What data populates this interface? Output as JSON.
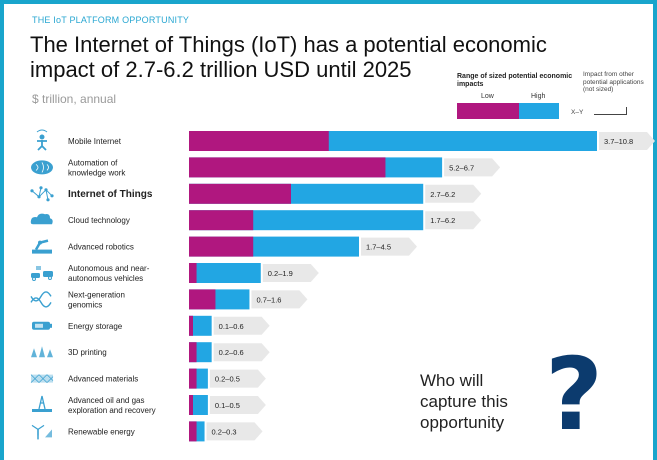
{
  "header": {
    "kicker": "THE IoT PLATFORM OPPORTUNITY",
    "title_line1": "The Internet of Things (IoT) has a potential economic",
    "title_line2": "impact of 2.7-6.2 trillion USD until 2025",
    "unit": "$ trillion, annual"
  },
  "legend": {
    "range_title": "Range of sized potential economic impacts",
    "low": "Low",
    "high": "High",
    "other_title": "Impact from other potential applications (not sized)",
    "xy": "X–Y"
  },
  "callout": {
    "line1": "Who will",
    "line2": "capture this",
    "line3": "opportunity",
    "mark": "?"
  },
  "colors": {
    "low": "#b0177f",
    "high": "#22a6e3",
    "label_box": "#e8e8e8",
    "accent": "#19a5cc",
    "icon": "#3aa0d0"
  },
  "chart_data": {
    "type": "bar",
    "orientation": "horizontal",
    "unit": "$ trillion, annual",
    "xlim": [
      0,
      10.8
    ],
    "categories": [
      "Mobile Internet",
      "Automation of knowledge work",
      "Internet of Things",
      "Cloud technology",
      "Advanced robotics",
      "Autonomous and near-autonomous vehicles",
      "Next-generation genomics",
      "Energy storage",
      "3D printing",
      "Advanced materials",
      "Advanced oil and gas exploration and recovery",
      "Renewable energy"
    ],
    "label_lines": [
      [
        "Mobile Internet"
      ],
      [
        "Automation of",
        "knowledge work"
      ],
      [
        "Internet of Things"
      ],
      [
        "Cloud technology"
      ],
      [
        "Advanced robotics"
      ],
      [
        "Autonomous and near-",
        "autonomous vehicles"
      ],
      [
        "Next-generation",
        "genomics"
      ],
      [
        "Energy storage"
      ],
      [
        "3D printing"
      ],
      [
        "Advanced materials"
      ],
      [
        "Advanced oil and gas",
        "exploration and recovery"
      ],
      [
        "Renewable energy"
      ]
    ],
    "highlight": "Internet of Things",
    "series": [
      {
        "name": "Low",
        "values": [
          3.7,
          5.2,
          2.7,
          1.7,
          1.7,
          0.2,
          0.7,
          0.1,
          0.2,
          0.2,
          0.1,
          0.2
        ]
      },
      {
        "name": "High",
        "values": [
          10.8,
          6.7,
          6.2,
          6.2,
          4.5,
          1.9,
          1.6,
          0.6,
          0.6,
          0.5,
          0.5,
          0.3
        ]
      }
    ],
    "value_labels": [
      "3.7–10.8",
      "5.2–6.7",
      "2.7–6.2",
      "1.7–6.2",
      "1.7–4.5",
      "0.2–1.9",
      "0.7–1.6",
      "0.1–0.6",
      "0.2–0.6",
      "0.2–0.5",
      "0.1–0.5",
      "0.2–0.3"
    ],
    "icons": [
      "person-wifi-icon",
      "brain-icon",
      "network-icon",
      "cloud-icon",
      "robot-arm-icon",
      "cars-icon",
      "dna-icon",
      "battery-icon",
      "printer-3d-icon",
      "material-mesh-icon",
      "oil-rig-icon",
      "wind-turbine-icon"
    ]
  }
}
